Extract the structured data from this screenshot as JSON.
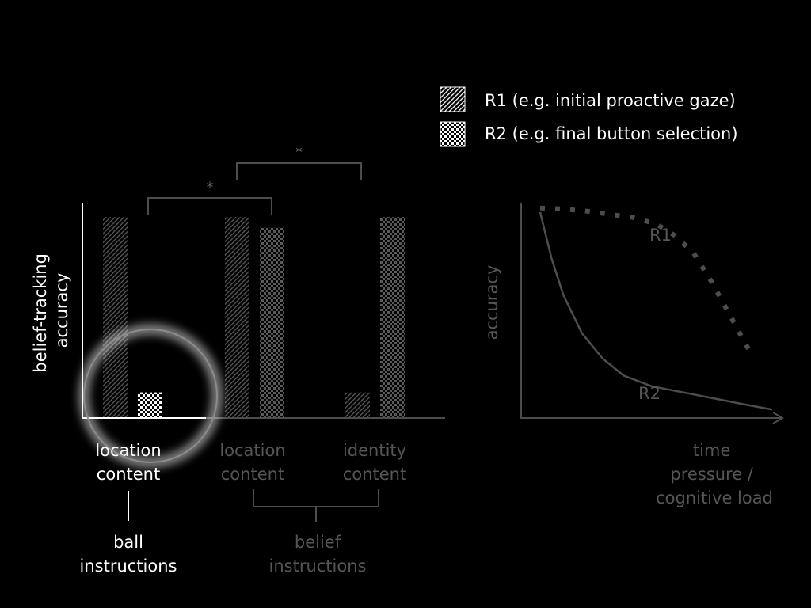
{
  "legend": {
    "items": [
      {
        "label": "R1 (e.g. initial proactive gaze)",
        "pattern": "hatch"
      },
      {
        "label": "R2 (e.g. final button selection)",
        "pattern": "checker"
      }
    ]
  },
  "colors": {
    "background": "#000000",
    "highlight": "#ffffff",
    "muted": "#4d4d4d",
    "muted_text": "#565656",
    "marker_text": "#6b6b6b"
  },
  "chart_data": [
    {
      "type": "bar",
      "ylabel": "belief-tracking accuracy",
      "xlabel": "",
      "ylim": [
        0,
        1
      ],
      "grid": false,
      "categories": [
        "location content",
        "location content",
        "identity content"
      ],
      "groups": [
        {
          "label": "ball instructions",
          "categories": [
            "location content"
          ]
        },
        {
          "label": "belief instructions",
          "categories": [
            "location content",
            "identity content"
          ]
        }
      ],
      "series": [
        {
          "name": "R1 (e.g. initial proactive gaze)",
          "pattern": "hatch",
          "values": [
            0.94,
            0.94,
            0.12
          ]
        },
        {
          "name": "R2 (e.g. final button selection)",
          "pattern": "checker",
          "values": [
            0.12,
            0.89,
            0.94
          ]
        }
      ],
      "significance": [
        {
          "from": "R2 location content (ball)",
          "to": "R2 location content (belief)",
          "marker": "*"
        },
        {
          "from": "R1 location content (belief)",
          "to": "R1 identity content (belief)",
          "marker": "*"
        }
      ],
      "highlighted_category": "location content (ball instructions)"
    },
    {
      "type": "line",
      "xlabel": "time pressure / cognitive load",
      "ylabel": "accuracy",
      "xlim": [
        0,
        1
      ],
      "ylim": [
        0,
        1
      ],
      "series": [
        {
          "name": "R1",
          "style": "dotted",
          "x": [
            0.0,
            0.1,
            0.2,
            0.3,
            0.4,
            0.5,
            0.58,
            0.66,
            0.74,
            0.82,
            0.9
          ],
          "y": [
            0.99,
            0.985,
            0.975,
            0.96,
            0.945,
            0.915,
            0.86,
            0.78,
            0.64,
            0.48,
            0.32
          ]
        },
        {
          "name": "R2",
          "style": "solid",
          "x": [
            0.0,
            0.05,
            0.1,
            0.18,
            0.27,
            0.36,
            0.48,
            0.62,
            0.76,
            0.9,
            1.0
          ],
          "y": [
            0.97,
            0.75,
            0.58,
            0.4,
            0.28,
            0.2,
            0.15,
            0.12,
            0.09,
            0.06,
            0.04
          ]
        }
      ]
    }
  ]
}
